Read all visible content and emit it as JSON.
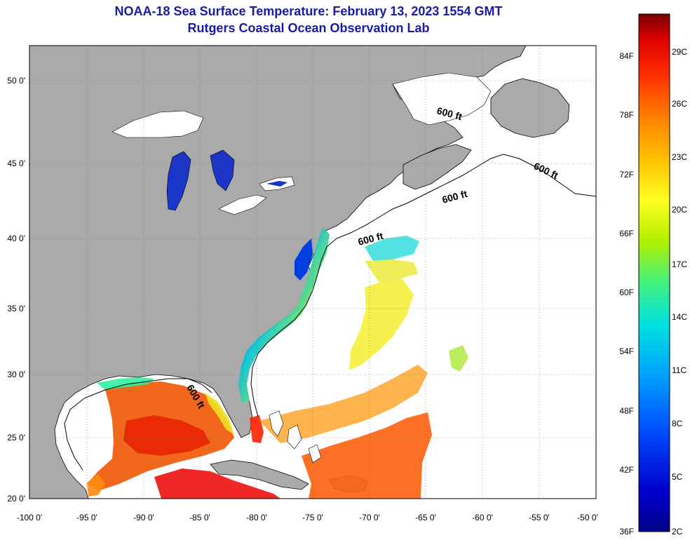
{
  "title": {
    "line1": "NOAA-18 Sea Surface Temperature:  February 13, 2023 1554 GMT",
    "line2": "Rutgers Coastal Ocean Observation Lab"
  },
  "axes": {
    "longitude_ticks": [
      "-100 0'",
      "-95 0'",
      "-90 0'",
      "-85 0'",
      "-80 0'",
      "-75 0'",
      "-70 0'",
      "-65 0'",
      "-60 0'",
      "-55 0'",
      "-50 0'"
    ],
    "latitude_ticks": [
      "50 0'",
      "45 0'",
      "40 0'",
      "35 0'",
      "30 0'",
      "25 0'",
      "20 0'"
    ],
    "lon_range": [
      -100,
      -50
    ],
    "lat_range": [
      20,
      52.5
    ],
    "grid": "dotted"
  },
  "contour_labels": [
    "600 ft",
    "600 ft",
    "600 ft",
    "600 ft",
    "600 ft"
  ],
  "colorbar": {
    "fahrenheit_ticks": [
      "84F",
      "78F",
      "72F",
      "66F",
      "60F",
      "54F",
      "48F",
      "42F",
      "36F"
    ],
    "celsius_ticks": [
      "29C",
      "26C",
      "23C",
      "20C",
      "17C",
      "14C",
      "11C",
      "8C",
      "5C",
      "2C"
    ],
    "colors": [
      "#7a0000",
      "#e00000",
      "#ff3000",
      "#ff8000",
      "#ffc000",
      "#ffff20",
      "#b0f000",
      "#40f080",
      "#00e0e0",
      "#00a0ff",
      "#0050ff",
      "#0000d0",
      "#00008a"
    ]
  },
  "colors": {
    "land": "#aaaaaa",
    "water_nodata": "#ffffff",
    "title": "#1a1aa6",
    "lakes": "#1a35c8"
  }
}
